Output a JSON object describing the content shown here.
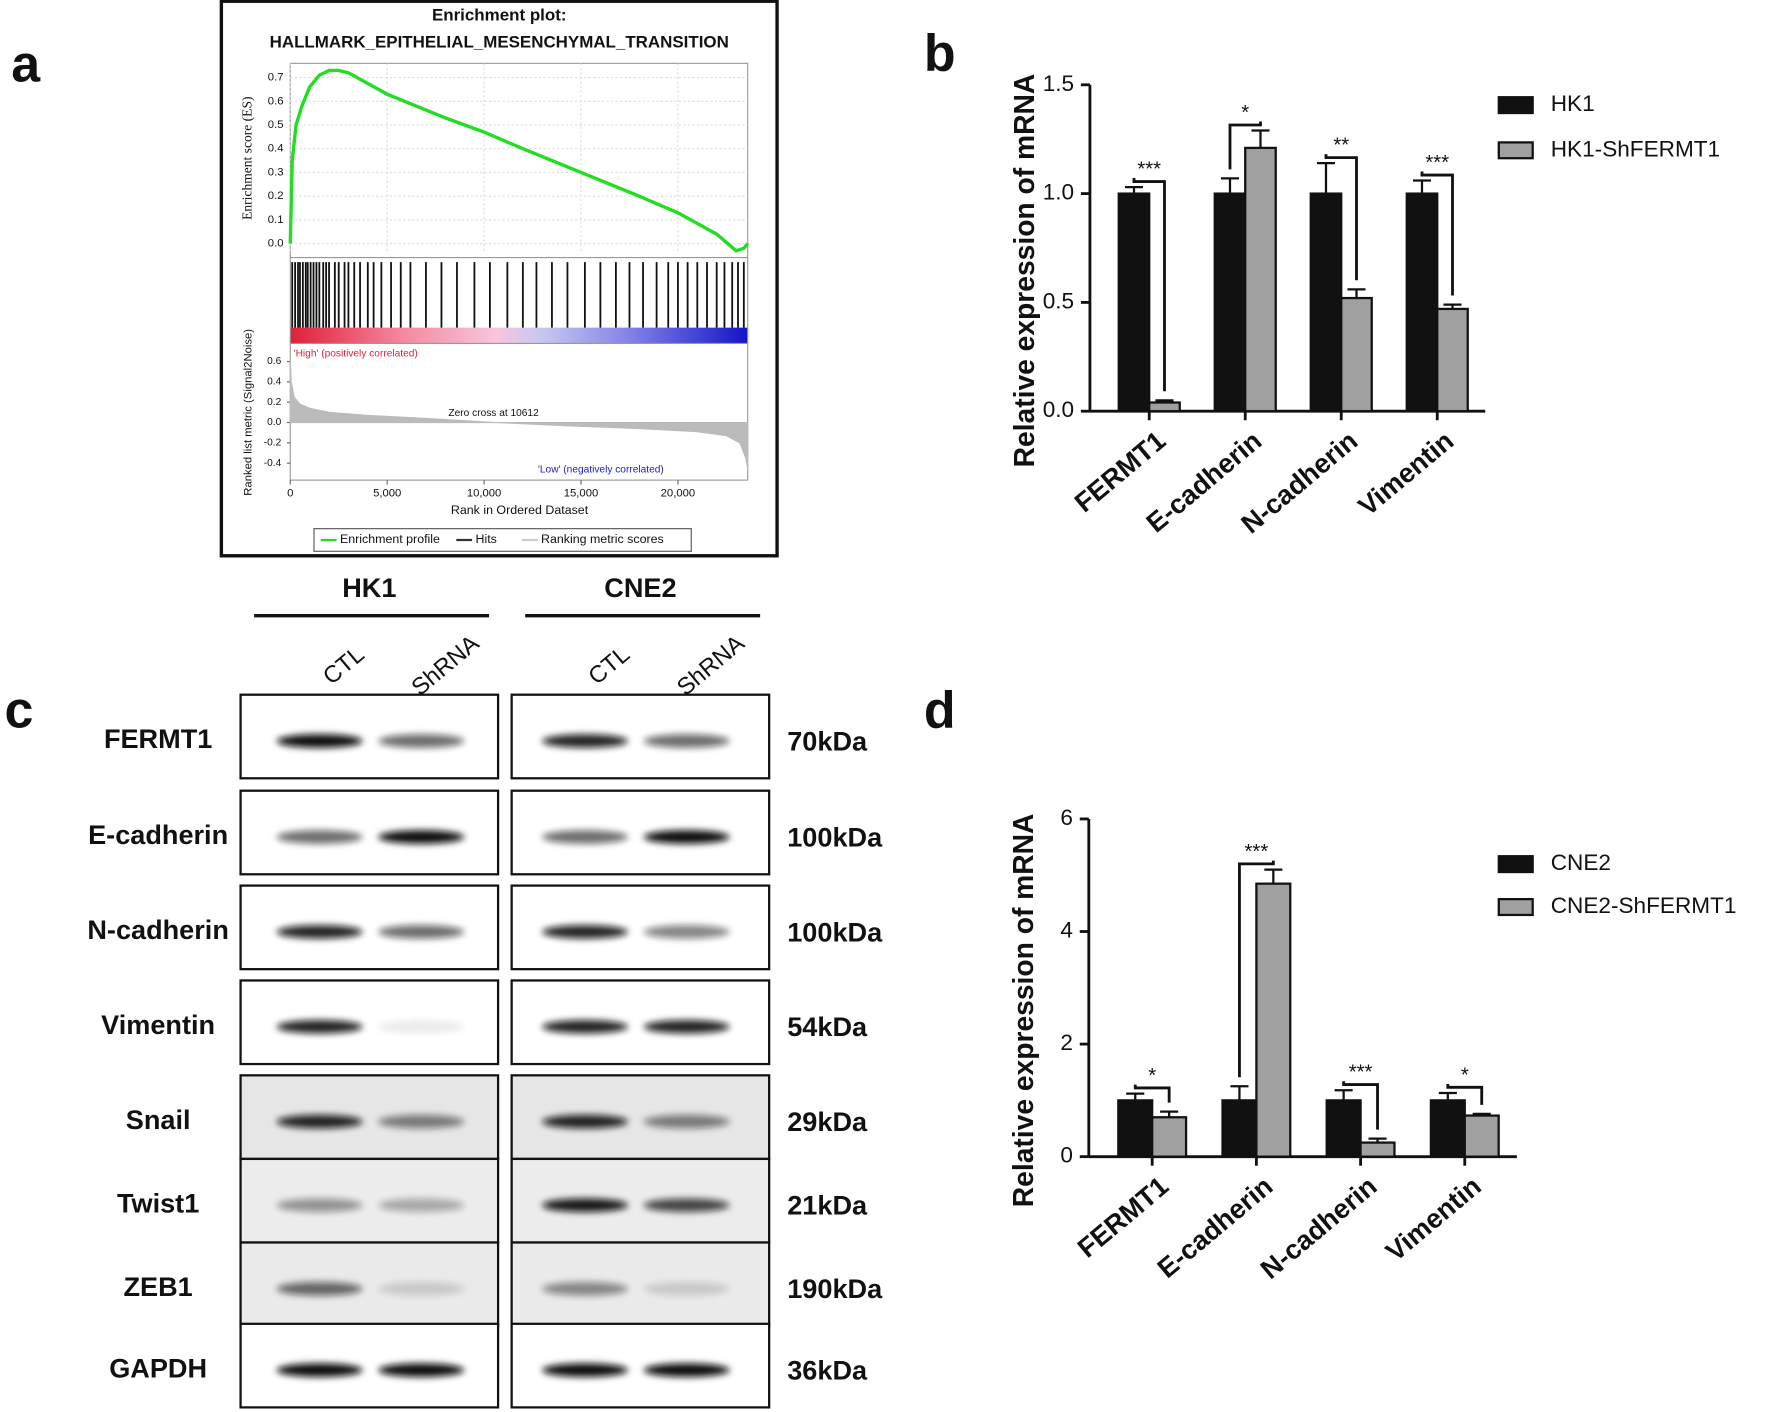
{
  "panel_labels": [
    "a",
    "b",
    "c",
    "d"
  ],
  "chart_data": [
    {
      "type": "enrichment",
      "title": "Enrichment plot:",
      "subtitle": "HALLMARK_EPITHELIAL_MESENCHYMAL_TRANSITION",
      "x_label": "Rank in Ordered Dataset",
      "xlim": [
        0,
        23600
      ],
      "xticks": [
        0,
        {
          "value": 5000,
          "label": "5,000"
        },
        {
          "value": 10000,
          "label": "10,000"
        },
        {
          "value": 15000,
          "label": "15,000"
        },
        {
          "value": 20000,
          "label": "20,000"
        }
      ],
      "grid": true,
      "es": {
        "y_label": "Enrichment score (ES)",
        "ylim": [
          -0.04,
          0.76
        ],
        "color": "#22dd22",
        "yticks": [
          {
            "value": 0,
            "label": "0.0"
          },
          0.1,
          0.2,
          0.3,
          0.4,
          0.5,
          0.6,
          0.7
        ],
        "x": [
          0,
          100,
          300,
          600,
          1000,
          1500,
          2000,
          2500,
          3000,
          5000,
          8000,
          10000,
          12000,
          15000,
          18000,
          20000,
          22000,
          23000,
          23400,
          23600
        ],
        "values": [
          0,
          0.35,
          0.5,
          0.58,
          0.66,
          0.71,
          0.73,
          0.73,
          0.72,
          0.63,
          0.53,
          0.47,
          0.4,
          0.3,
          0.2,
          0.13,
          0.04,
          -0.03,
          -0.02,
          0
        ]
      },
      "hits": [
        100,
        250,
        400,
        500,
        650,
        800,
        900,
        1050,
        1200,
        1350,
        1500,
        1700,
        1850,
        2000,
        2300,
        2500,
        2800,
        3000,
        3300,
        3600,
        4000,
        4300,
        4700,
        5200,
        5700,
        6200,
        7000,
        7800,
        8600,
        9500,
        10300,
        11200,
        12000,
        12700,
        13500,
        14300,
        15200,
        16000,
        16800,
        17500,
        18200,
        18900,
        19500,
        20000,
        20500,
        21000,
        21500,
        22000,
        22400,
        22800,
        23100,
        23400
      ],
      "metric": {
        "y_label": "Ranked list metric (Signal2Noise)",
        "ylim": [
          -0.5,
          0.7
        ],
        "color": "#bbbbbb",
        "yticks": [
          -0.4,
          -0.2,
          {
            "value": 0,
            "label": "0.0"
          },
          0.2,
          0.4,
          0.6
        ],
        "x": [
          0,
          50,
          200,
          500,
          1000,
          2000,
          4000,
          7000,
          10612,
          14000,
          18000,
          21000,
          22500,
          23200,
          23500,
          23600
        ],
        "values": [
          0.62,
          0.4,
          0.25,
          0.18,
          0.14,
          0.1,
          0.07,
          0.04,
          0,
          -0.03,
          -0.06,
          -0.09,
          -0.13,
          -0.2,
          -0.35,
          -0.45
        ]
      },
      "annotations": [
        "'High' (positively correlated)",
        "Zero cross at 10612",
        "'Low' (negatively correlated)"
      ],
      "legend": [
        "Enrichment profile",
        "Hits",
        "Ranking metric scores"
      ]
    },
    {
      "type": "bar",
      "y_label": "Relative expression of mRNA",
      "categories": [
        "FERMT1",
        "E-cadherin",
        "N-cadherin",
        "Vimentin"
      ],
      "ylim": [
        0,
        1.5
      ],
      "yticks": [
        {
          "value": 0,
          "label": "0.0"
        },
        0.5,
        {
          "value": 1,
          "label": "1.0"
        },
        1.5
      ],
      "series": [
        {
          "name": "HK1",
          "color": "#111111",
          "values": [
            1.0,
            1.0,
            1.0,
            1.0
          ],
          "errors": [
            0.03,
            0.07,
            0.14,
            0.06
          ]
        },
        {
          "name": "HK1-ShFERMT1",
          "color": "#a0a0a0",
          "values": [
            0.04,
            1.21,
            0.52,
            0.47
          ],
          "errors": [
            0.01,
            0.08,
            0.04,
            0.02
          ]
        }
      ],
      "significance": [
        "***",
        "*",
        "**",
        "***"
      ]
    },
    {
      "type": "bar",
      "y_label": "Relative expression of mRNA",
      "categories": [
        "FERMT1",
        "E-cadherin",
        "N-cadherin",
        "Vimentin"
      ],
      "ylim": [
        0,
        6
      ],
      "yticks": [
        0,
        2,
        4,
        6
      ],
      "series": [
        {
          "name": "CNE2",
          "color": "#111111",
          "values": [
            1.0,
            1.0,
            1.0,
            1.0
          ],
          "errors": [
            0.12,
            0.25,
            0.18,
            0.13
          ]
        },
        {
          "name": "CNE2-ShFERMT1",
          "color": "#a0a0a0",
          "values": [
            0.7,
            4.85,
            0.25,
            0.73
          ],
          "errors": [
            0.1,
            0.25,
            0.07,
            0.03
          ]
        }
      ],
      "significance": [
        "*",
        "***",
        "***",
        "*"
      ]
    }
  ],
  "western_blot": {
    "cell_lines": [
      "HK1",
      "CNE2"
    ],
    "lanes": [
      "CTL",
      "ShRNA",
      "CTL",
      "ShRNA"
    ],
    "proteins": [
      "FERMT1",
      "E-cadherin",
      "N-cadherin",
      "Vimentin",
      "Snail",
      "Twist1",
      "ZEB1",
      "GAPDH"
    ],
    "sizes": [
      "70kDa",
      "100kDa",
      "100kDa",
      "54kDa",
      "29kDa",
      "21kDa",
      "190kDa",
      "36kDa"
    ]
  }
}
